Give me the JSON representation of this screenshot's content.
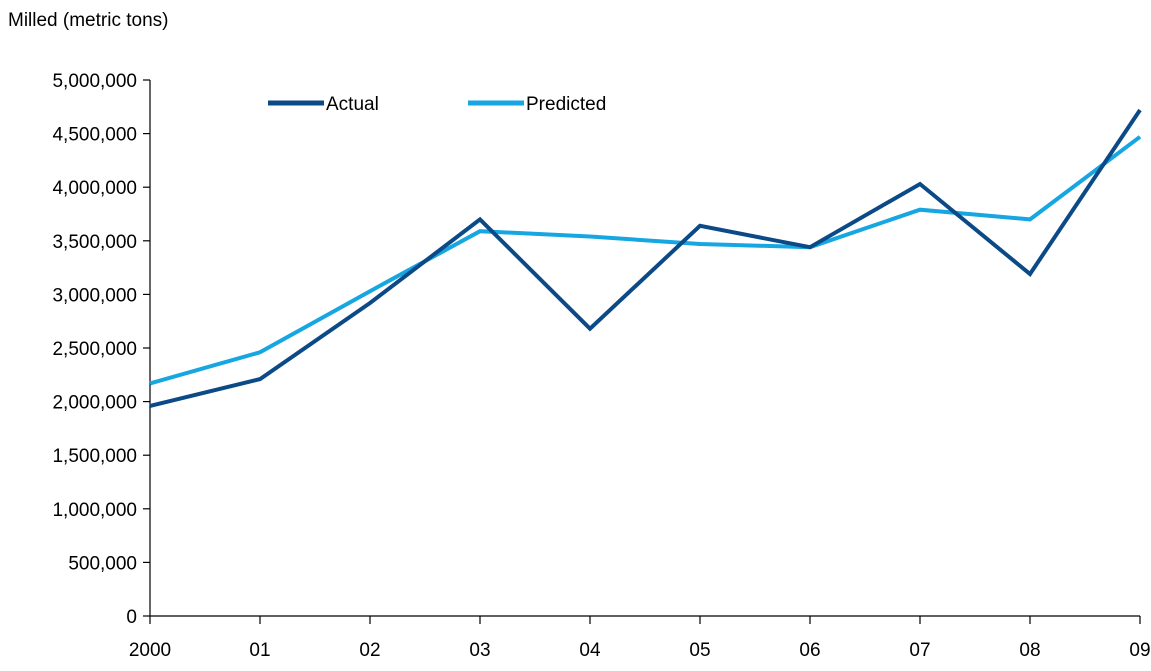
{
  "chart_data": {
    "type": "line",
    "title": "",
    "ylabel": "Milled (metric tons)",
    "xlabel": "",
    "categories": [
      "2000",
      "01",
      "02",
      "03",
      "04",
      "05",
      "06",
      "07",
      "08",
      "09"
    ],
    "ylim": [
      0,
      5000000
    ],
    "yticks": [
      0,
      500000,
      1000000,
      1500000,
      2000000,
      2500000,
      3000000,
      3500000,
      4000000,
      4500000,
      5000000
    ],
    "ytick_labels": [
      "0",
      "500,000",
      "1,000,000",
      "1,500,000",
      "2,000,000",
      "2,500,000",
      "3,000,000",
      "3,500,000",
      "4,000,000",
      "4,500,000",
      "5,000,000"
    ],
    "grid": false,
    "legend_position": "top-left",
    "series": [
      {
        "name": "Actual",
        "color": "#0b4a86",
        "values": [
          1960000,
          2210000,
          2920000,
          3700000,
          2680000,
          3640000,
          3440000,
          4030000,
          3190000,
          4720000
        ]
      },
      {
        "name": "Predicted",
        "color": "#16a6e1",
        "values": [
          2170000,
          2460000,
          3030000,
          3590000,
          3540000,
          3470000,
          3440000,
          3790000,
          3700000,
          4470000
        ]
      }
    ]
  }
}
